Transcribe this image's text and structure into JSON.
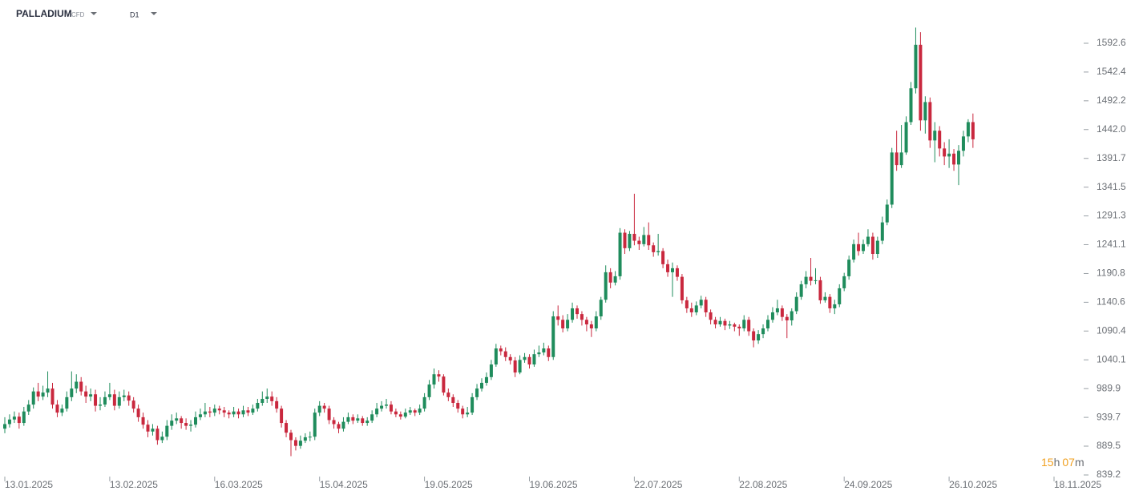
{
  "chart_data": {
    "type": "candlestick",
    "title": "PALLADIUM",
    "subtitle": "CFD",
    "timeframe": "D1",
    "countdown": {
      "hours": "15",
      "hours_unit": "h",
      "minutes": "07",
      "minutes_unit": "m"
    },
    "up_color": "#1f8c5c",
    "down_color": "#c9283e",
    "ylim": [
      839.2,
      1668.1
    ],
    "yticks": [
      839.2,
      889.5,
      939.7,
      989.9,
      1040.1,
      1090.4,
      1140.6,
      1190.8,
      1241.1,
      1291.3,
      1341.5,
      1391.7,
      {
        "value": 1442,
        "label": "1442.0"
      },
      1492.2,
      1542.4,
      1592.6
    ],
    "xlim": [
      0,
      220
    ],
    "xticks": [
      {
        "value": 0,
        "label": "13.01.2025"
      },
      {
        "value": 22,
        "label": "13.02.2025"
      },
      {
        "value": 44,
        "label": "16.03.2025"
      },
      {
        "value": 66,
        "label": "15.04.2025"
      },
      {
        "value": 88,
        "label": "19.05.2025"
      },
      {
        "value": 110,
        "label": "19.06.2025"
      },
      {
        "value": 132,
        "label": "22.07.2025"
      },
      {
        "value": 154,
        "label": "22.08.2025"
      },
      {
        "value": 176,
        "label": "24.09.2025"
      },
      {
        "value": 198,
        "label": "26.10.2025"
      },
      {
        "value": 220,
        "label": "18.11.2025"
      }
    ],
    "candles": [
      [
        920,
        940,
        912,
        928
      ],
      [
        928,
        945,
        922,
        936
      ],
      [
        936,
        950,
        930,
        941
      ],
      [
        941,
        948,
        920,
        930
      ],
      [
        930,
        958,
        925,
        950
      ],
      [
        950,
        970,
        944,
        962
      ],
      [
        962,
        992,
        955,
        985
      ],
      [
        985,
        1000,
        968,
        976
      ],
      [
        976,
        995,
        970,
        983
      ],
      [
        983,
        1020,
        975,
        990
      ],
      [
        990,
        1000,
        955,
        962
      ],
      [
        962,
        970,
        940,
        948
      ],
      [
        948,
        962,
        942,
        955
      ],
      [
        955,
        985,
        950,
        975
      ],
      [
        975,
        1020,
        968,
        990
      ],
      [
        990,
        1015,
        982,
        1002
      ],
      [
        1002,
        1010,
        978,
        985
      ],
      [
        985,
        995,
        965,
        976
      ],
      [
        976,
        990,
        968,
        980
      ],
      [
        980,
        988,
        950,
        960
      ],
      [
        960,
        975,
        952,
        962
      ],
      [
        962,
        985,
        958,
        975
      ],
      [
        975,
        1000,
        970,
        980
      ],
      [
        980,
        988,
        952,
        960
      ],
      [
        960,
        985,
        955,
        975
      ],
      [
        975,
        988,
        968,
        978
      ],
      [
        978,
        985,
        960,
        969
      ],
      [
        969,
        975,
        948,
        955
      ],
      [
        955,
        962,
        932,
        940
      ],
      [
        940,
        948,
        920,
        927
      ],
      [
        927,
        935,
        905,
        915
      ],
      [
        915,
        928,
        908,
        920
      ],
      [
        920,
        925,
        892,
        900
      ],
      [
        900,
        915,
        895,
        906
      ],
      [
        906,
        935,
        900,
        925
      ],
      [
        925,
        945,
        918,
        934
      ],
      [
        934,
        948,
        928,
        938
      ],
      [
        938,
        942,
        920,
        930
      ],
      [
        930,
        938,
        918,
        925
      ],
      [
        925,
        935,
        915,
        927
      ],
      [
        927,
        950,
        922,
        940
      ],
      [
        940,
        955,
        935,
        945
      ],
      [
        945,
        965,
        940,
        950
      ],
      [
        950,
        958,
        940,
        948
      ],
      [
        948,
        962,
        942,
        955
      ],
      [
        955,
        960,
        945,
        952
      ],
      [
        952,
        958,
        940,
        948
      ],
      [
        948,
        952,
        938,
        945
      ],
      [
        945,
        958,
        940,
        950
      ],
      [
        950,
        955,
        938,
        945
      ],
      [
        945,
        960,
        940,
        952
      ],
      [
        952,
        958,
        942,
        948
      ],
      [
        948,
        962,
        944,
        955
      ],
      [
        955,
        972,
        950,
        965
      ],
      [
        965,
        985,
        960,
        972
      ],
      [
        972,
        990,
        965,
        976
      ],
      [
        976,
        985,
        960,
        968
      ],
      [
        968,
        975,
        948,
        955
      ],
      [
        955,
        960,
        922,
        930
      ],
      [
        930,
        935,
        905,
        913
      ],
      [
        913,
        918,
        872,
        900
      ],
      [
        900,
        905,
        882,
        890
      ],
      [
        890,
        908,
        885,
        899
      ],
      [
        899,
        912,
        895,
        905
      ],
      [
        905,
        915,
        898,
        906
      ],
      [
        906,
        955,
        900,
        948
      ],
      [
        948,
        968,
        942,
        960
      ],
      [
        960,
        965,
        948,
        955
      ],
      [
        955,
        960,
        928,
        935
      ],
      [
        935,
        940,
        920,
        928
      ],
      [
        928,
        932,
        912,
        920
      ],
      [
        920,
        940,
        915,
        932
      ],
      [
        932,
        948,
        928,
        940
      ],
      [
        940,
        945,
        928,
        934
      ],
      [
        934,
        945,
        930,
        938
      ],
      [
        938,
        942,
        925,
        930
      ],
      [
        930,
        940,
        925,
        934
      ],
      [
        934,
        952,
        930,
        945
      ],
      [
        945,
        965,
        940,
        955
      ],
      [
        955,
        968,
        950,
        960
      ],
      [
        960,
        972,
        955,
        962
      ],
      [
        962,
        968,
        945,
        950
      ],
      [
        950,
        955,
        940,
        945
      ],
      [
        945,
        950,
        936,
        941
      ],
      [
        941,
        955,
        938,
        948
      ],
      [
        948,
        958,
        944,
        952
      ],
      [
        952,
        955,
        942,
        948
      ],
      [
        948,
        962,
        944,
        955
      ],
      [
        955,
        982,
        950,
        975
      ],
      [
        975,
        1005,
        970,
        997
      ],
      [
        997,
        1025,
        990,
        1015
      ],
      [
        1015,
        1022,
        1002,
        1011
      ],
      [
        1011,
        1015,
        978,
        983
      ],
      [
        983,
        990,
        968,
        975
      ],
      [
        975,
        980,
        958,
        965
      ],
      [
        965,
        970,
        948,
        955
      ],
      [
        955,
        960,
        938,
        945
      ],
      [
        945,
        958,
        940,
        948
      ],
      [
        948,
        982,
        944,
        975
      ],
      [
        975,
        998,
        970,
        990
      ],
      [
        990,
        1008,
        985,
        1000
      ],
      [
        1000,
        1018,
        995,
        1010
      ],
      [
        1010,
        1040,
        1005,
        1032
      ],
      [
        1032,
        1068,
        1028,
        1060
      ],
      [
        1060,
        1065,
        1048,
        1055
      ],
      [
        1055,
        1062,
        1038,
        1045
      ],
      [
        1045,
        1050,
        1032,
        1039
      ],
      [
        1039,
        1045,
        1010,
        1018
      ],
      [
        1018,
        1048,
        1015,
        1040
      ],
      [
        1040,
        1052,
        1035,
        1045
      ],
      [
        1045,
        1050,
        1025,
        1032
      ],
      [
        1032,
        1058,
        1028,
        1050
      ],
      [
        1050,
        1065,
        1045,
        1053
      ],
      [
        1053,
        1070,
        1048,
        1060
      ],
      [
        1060,
        1065,
        1038,
        1045
      ],
      [
        1045,
        1125,
        1040,
        1116
      ],
      [
        1116,
        1135,
        1100,
        1110
      ],
      [
        1110,
        1118,
        1088,
        1095
      ],
      [
        1095,
        1120,
        1090,
        1110
      ],
      [
        1110,
        1140,
        1105,
        1130
      ],
      [
        1130,
        1135,
        1112,
        1120
      ],
      [
        1120,
        1125,
        1100,
        1110
      ],
      [
        1110,
        1115,
        1090,
        1102
      ],
      [
        1102,
        1108,
        1080,
        1095
      ],
      [
        1095,
        1125,
        1090,
        1116
      ],
      [
        1116,
        1150,
        1110,
        1145
      ],
      [
        1145,
        1205,
        1140,
        1193
      ],
      [
        1193,
        1200,
        1165,
        1175
      ],
      [
        1175,
        1195,
        1170,
        1186
      ],
      [
        1186,
        1270,
        1180,
        1262
      ],
      [
        1262,
        1268,
        1225,
        1235
      ],
      [
        1235,
        1265,
        1230,
        1260
      ],
      [
        1260,
        1330,
        1240,
        1248
      ],
      [
        1248,
        1255,
        1232,
        1242
      ],
      [
        1242,
        1272,
        1238,
        1258
      ],
      [
        1258,
        1280,
        1232,
        1240
      ],
      [
        1240,
        1245,
        1220,
        1228
      ],
      [
        1228,
        1260,
        1222,
        1230
      ],
      [
        1230,
        1235,
        1200,
        1207
      ],
      [
        1207,
        1215,
        1185,
        1193
      ],
      [
        1193,
        1210,
        1150,
        1200
      ],
      [
        1200,
        1205,
        1178,
        1185
      ],
      [
        1185,
        1190,
        1138,
        1144
      ],
      [
        1144,
        1150,
        1122,
        1130
      ],
      [
        1130,
        1140,
        1115,
        1123
      ],
      [
        1123,
        1142,
        1118,
        1135
      ],
      [
        1135,
        1152,
        1130,
        1145
      ],
      [
        1145,
        1150,
        1115,
        1123
      ],
      [
        1123,
        1128,
        1102,
        1110
      ],
      [
        1110,
        1115,
        1095,
        1102
      ],
      [
        1102,
        1115,
        1098,
        1108
      ],
      [
        1108,
        1112,
        1092,
        1100
      ],
      [
        1100,
        1108,
        1094,
        1102
      ],
      [
        1102,
        1105,
        1090,
        1098
      ],
      [
        1098,
        1102,
        1082,
        1095
      ],
      [
        1095,
        1118,
        1090,
        1110
      ],
      [
        1110,
        1115,
        1082,
        1090
      ],
      [
        1090,
        1095,
        1062,
        1074
      ],
      [
        1074,
        1092,
        1068,
        1085
      ],
      [
        1085,
        1102,
        1078,
        1095
      ],
      [
        1095,
        1118,
        1090,
        1110
      ],
      [
        1110,
        1132,
        1105,
        1123
      ],
      [
        1123,
        1145,
        1118,
        1130
      ],
      [
        1130,
        1135,
        1108,
        1115
      ],
      [
        1115,
        1120,
        1078,
        1109
      ],
      [
        1109,
        1130,
        1100,
        1125
      ],
      [
        1125,
        1158,
        1120,
        1150
      ],
      [
        1150,
        1178,
        1145,
        1172
      ],
      [
        1172,
        1195,
        1165,
        1185
      ],
      [
        1185,
        1218,
        1170,
        1178
      ],
      [
        1178,
        1200,
        1172,
        1179
      ],
      [
        1179,
        1185,
        1138,
        1144
      ],
      [
        1144,
        1158,
        1140,
        1150
      ],
      [
        1150,
        1155,
        1122,
        1130
      ],
      [
        1130,
        1145,
        1120,
        1137
      ],
      [
        1137,
        1172,
        1132,
        1165
      ],
      [
        1165,
        1192,
        1160,
        1186
      ],
      [
        1186,
        1222,
        1180,
        1215
      ],
      [
        1215,
        1250,
        1210,
        1242
      ],
      [
        1242,
        1262,
        1222,
        1230
      ],
      [
        1230,
        1250,
        1225,
        1242
      ],
      [
        1242,
        1268,
        1238,
        1255
      ],
      [
        1255,
        1262,
        1215,
        1225
      ],
      [
        1225,
        1255,
        1218,
        1248
      ],
      [
        1248,
        1290,
        1242,
        1280
      ],
      [
        1280,
        1320,
        1275,
        1311
      ],
      [
        1311,
        1410,
        1305,
        1402
      ],
      [
        1402,
        1440,
        1370,
        1380
      ],
      [
        1380,
        1450,
        1375,
        1402
      ],
      [
        1402,
        1465,
        1398,
        1455
      ],
      [
        1455,
        1525,
        1450,
        1514
      ],
      [
        1514,
        1620,
        1505,
        1590
      ],
      [
        1590,
        1612,
        1440,
        1458
      ],
      [
        1458,
        1500,
        1435,
        1490
      ],
      [
        1490,
        1498,
        1410,
        1423
      ],
      [
        1423,
        1455,
        1385,
        1440
      ],
      [
        1440,
        1448,
        1395,
        1409
      ],
      [
        1409,
        1420,
        1380,
        1395
      ],
      [
        1395,
        1425,
        1375,
        1400
      ],
      [
        1400,
        1408,
        1370,
        1381
      ],
      [
        1381,
        1415,
        1345,
        1405
      ],
      [
        1405,
        1440,
        1395,
        1430
      ],
      [
        1430,
        1460,
        1420,
        1455
      ],
      [
        1455,
        1470,
        1410,
        1425
      ]
    ]
  }
}
